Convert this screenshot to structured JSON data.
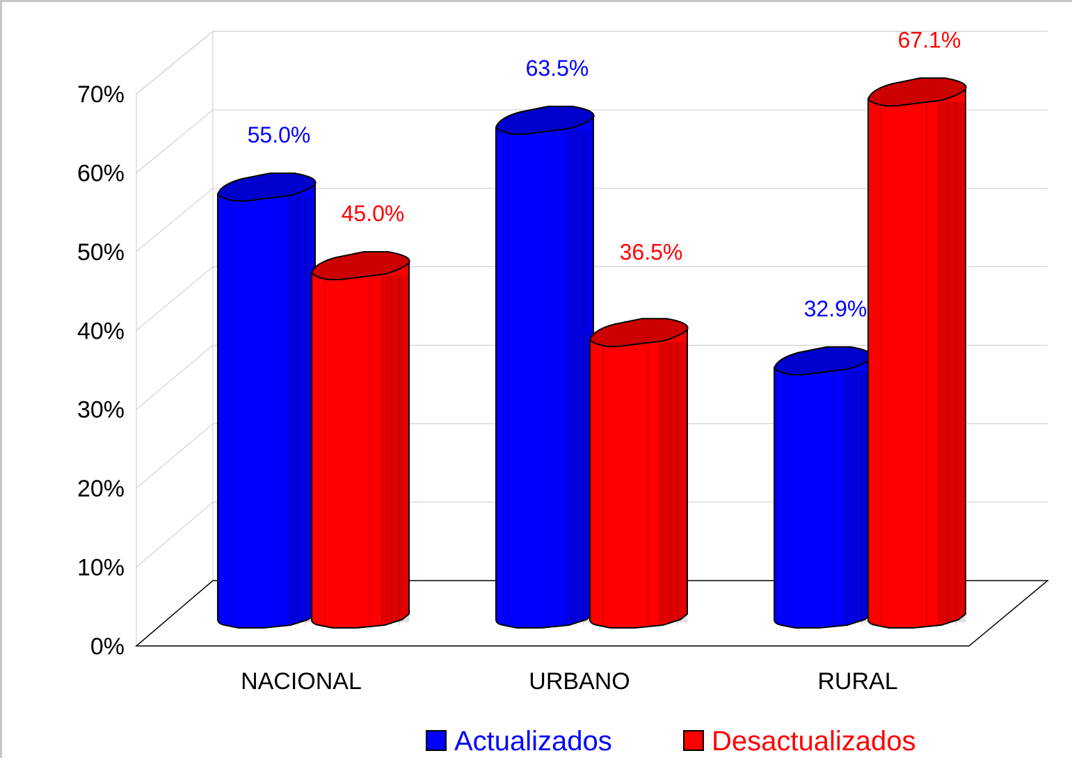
{
  "chart_data": {
    "type": "bar",
    "style": "3d-cylinder",
    "categories": [
      "NACIONAL",
      "URBANO",
      "RURAL"
    ],
    "series": [
      {
        "name": "Actualizados",
        "values": [
          55.0,
          63.5,
          32.9
        ],
        "labels": [
          "55.0%",
          "63.5%",
          "32.9%"
        ],
        "color": "#0000ff",
        "top_color": "#0000cc",
        "label_color": "#0000ff"
      },
      {
        "name": "Desactualizados",
        "values": [
          45.0,
          36.5,
          67.1
        ],
        "labels": [
          "45.0%",
          "36.5%",
          "67.1%"
        ],
        "color": "#ff0000",
        "top_color": "#cc0000",
        "label_color": "#ff0000"
      }
    ],
    "y_ticks": [
      "0%",
      "10%",
      "20%",
      "30%",
      "40%",
      "50%",
      "60%",
      "70%"
    ],
    "ylim": [
      0,
      70
    ],
    "grid": true,
    "legend_position": "bottom-right",
    "title": "",
    "xlabel": "",
    "ylabel": ""
  }
}
